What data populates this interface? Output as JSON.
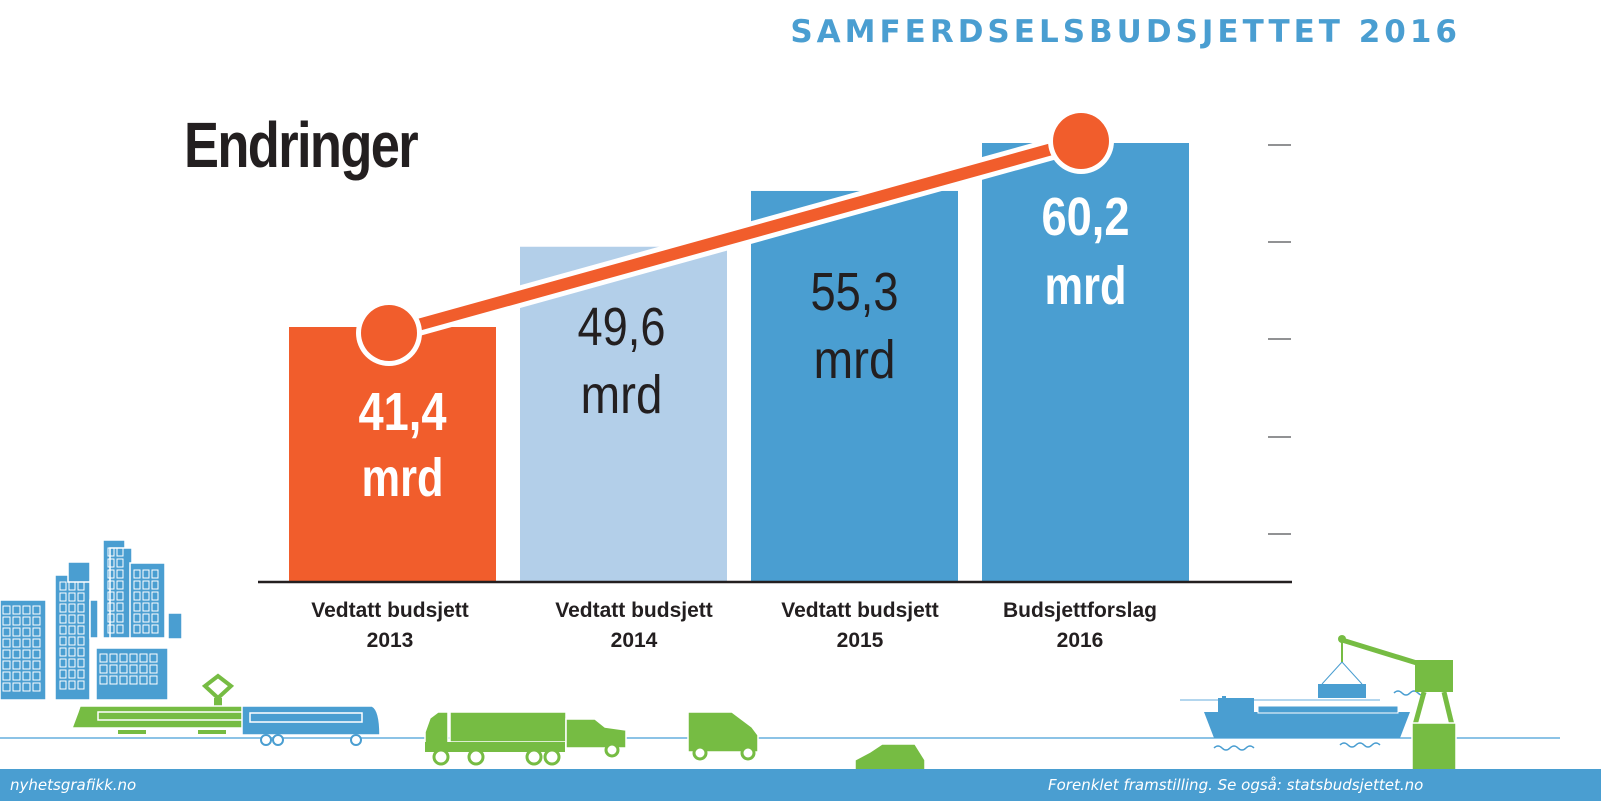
{
  "header": {
    "title": "SAMFERDSELSBUDSJETTET 2016"
  },
  "chart_data": {
    "type": "bar",
    "title": "Endringer",
    "unit": "mrd",
    "categories": [
      [
        "Vedtatt budsjett",
        "2013"
      ],
      [
        "Vedtatt budsjett",
        "2014"
      ],
      [
        "Vedtatt budsjett",
        "2015"
      ],
      [
        "Budsjettforslag",
        "2016"
      ]
    ],
    "values": [
      41.4,
      49.6,
      55.3,
      60.2
    ],
    "value_labels": [
      "41,4",
      "49,6",
      "55,3",
      "60,2"
    ],
    "unit_labels": [
      "mrd",
      "mrd",
      "mrd",
      "mrd"
    ],
    "bar_colors": [
      "#f15d2c",
      "#b3cfe9",
      "#4a9ed1",
      "#4a9ed1"
    ],
    "label_colors": [
      "#ffffff",
      "#231f20",
      "#231f20",
      "#ffffff"
    ],
    "label_bold": [
      true,
      false,
      false,
      true
    ],
    "trend_line": {
      "points_from": "values[0], values[3]",
      "color": "#f15d2c"
    },
    "ylim": [
      0,
      70
    ],
    "ytick_count": 5,
    "xlabel": "",
    "ylabel": "",
    "grid": false,
    "legend": "none"
  },
  "footer": {
    "left": "nyhetsgrafikk.no",
    "right": "Forenklet framstilling. Se også: statsbudsjettet.no"
  },
  "illustrations": [
    "city-buildings-icon",
    "tram-icon",
    "bus-icon",
    "truck-icon",
    "pickup-icon",
    "van-icon",
    "car-icon",
    "cargo-ship-icon",
    "harbor-crane-icon"
  ],
  "colors": {
    "accent_blue": "#4a9ed1",
    "light_blue": "#b3cfe9",
    "orange": "#f15d2c",
    "green": "#76bc43",
    "text_dark": "#231f20"
  }
}
